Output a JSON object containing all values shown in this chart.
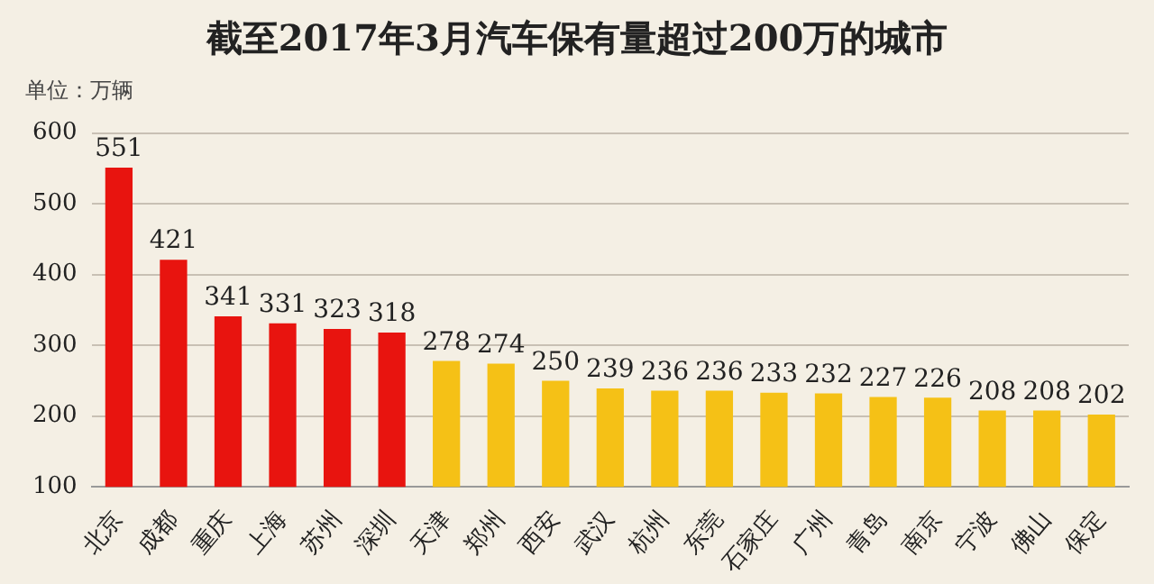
{
  "chart_data": {
    "type": "bar",
    "title": "截至2017年3月汽车保有量超过200万的城市",
    "ylabel": "单位：万辆",
    "categories": [
      "北京",
      "成都",
      "重庆",
      "上海",
      "苏州",
      "深圳",
      "天津",
      "郑州",
      "西安",
      "武汉",
      "杭州",
      "东莞",
      "石家庄",
      "广州",
      "青岛",
      "南京",
      "宁波",
      "佛山",
      "保定"
    ],
    "values": [
      551,
      421,
      341,
      331,
      323,
      318,
      278,
      274,
      250,
      239,
      236,
      236,
      233,
      232,
      227,
      226,
      208,
      208,
      202
    ],
    "colors": [
      "#e8140f",
      "#e8140f",
      "#e8140f",
      "#e8140f",
      "#e8140f",
      "#e8140f",
      "#f5c116",
      "#f5c116",
      "#f5c116",
      "#f5c116",
      "#f5c116",
      "#f5c116",
      "#f5c116",
      "#f5c116",
      "#f5c116",
      "#f5c116",
      "#f5c116",
      "#f5c116",
      "#f5c116"
    ],
    "ylim": [
      100,
      600
    ],
    "yticks": [
      100,
      200,
      300,
      400,
      500,
      600
    ],
    "grid": "y",
    "data_labels": true
  }
}
